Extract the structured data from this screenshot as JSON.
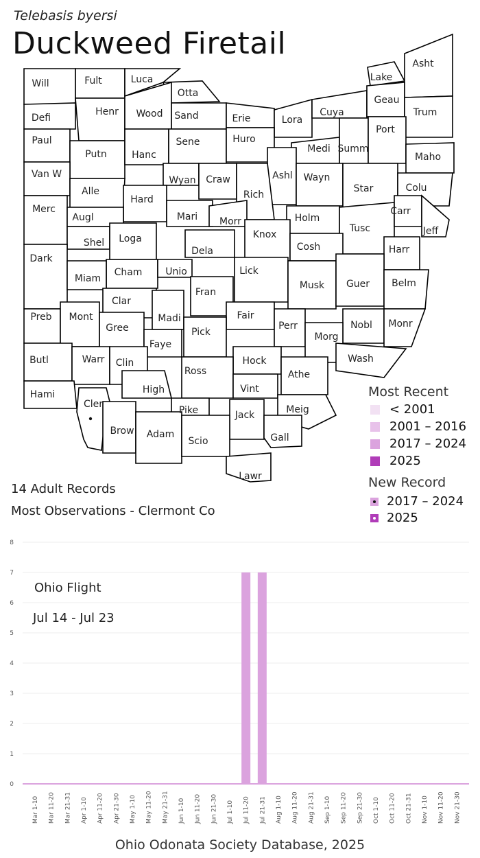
{
  "header": {
    "scientific_name": "Telebasis byersi",
    "common_name": "Duckweed Firetail"
  },
  "map": {
    "counties": [
      "Will",
      "Fult",
      "Luca",
      "Otta",
      "Lake",
      "Asht",
      "Defi",
      "Henr",
      "Wood",
      "Sand",
      "Erie",
      "Lora",
      "Cuya",
      "Geau",
      "Trum",
      "Paul",
      "Putn",
      "Hanc",
      "Sene",
      "Huro",
      "Medi",
      "Summ",
      "Port",
      "Maho",
      "Van W",
      "Alle",
      "Wyan",
      "Craw",
      "Ashl",
      "Wayn",
      "Star",
      "Colu",
      "Hard",
      "Rich",
      "Merc",
      "Augl",
      "Mari",
      "Morr",
      "Holm",
      "Tusc",
      "Carr",
      "Jeff",
      "Shel",
      "Loga",
      "Knox",
      "Cosh",
      "Harr",
      "Dela",
      "Dark",
      "Cham",
      "Unio",
      "Lick",
      "Miam",
      "Musk",
      "Guer",
      "Belm",
      "Fran",
      "Clar",
      "Madi",
      "Fair",
      "Perr",
      "Nobl",
      "Monr",
      "Preb",
      "Mont",
      "Gree",
      "Pick",
      "Morg",
      "Faye",
      "Wash",
      "Butl",
      "Warr",
      "Clin",
      "Hock",
      "Athe",
      "Ross",
      "Vint",
      "Hami",
      "Cler",
      "High",
      "Meig",
      "Pike",
      "Jack",
      "Brow",
      "Adam",
      "Scio",
      "Gall",
      "Lawr"
    ],
    "highlighted_county": "Cler",
    "colors": {
      "before_2001": "#f2e1f3",
      "2001_2016": "#e8c2ea",
      "2017_2024": "#dba3de",
      "2025": "#b03cb8"
    }
  },
  "legend": {
    "recent_title": "Most Recent",
    "recent_items": [
      "< 2001",
      "2001 – 2016",
      "2017 – 2024",
      "2025"
    ],
    "new_title": "New Record",
    "new_items": [
      "2017 – 2024",
      "2025"
    ]
  },
  "summary": {
    "records": "14 Adult Records",
    "most_obs": "Most Observations - Clermont Co"
  },
  "flight": {
    "label": "Ohio Flight",
    "range": "Jul 14 - Jul 23"
  },
  "chart_data": {
    "type": "bar",
    "categories": [
      "Mar 1-10",
      "Mar 11-20",
      "Mar 21-31",
      "Apr 1-10",
      "Apr 11-20",
      "Apr 21-30",
      "May 1-10",
      "May 11-20",
      "May 21-31",
      "Jun 1-10",
      "Jun 11-20",
      "Jun 21-30",
      "Jul 1-10",
      "Jul 11-20",
      "Jul 21-31",
      "Aug 1-10",
      "Aug 11-20",
      "Aug 21-31",
      "Sep 1-10",
      "Sep 11-20",
      "Sep 21-30",
      "Oct 1-10",
      "Oct 11-20",
      "Oct 21-31",
      "Nov 1-10",
      "Nov 11-20",
      "Nov 21-30"
    ],
    "values": [
      0,
      0,
      0,
      0,
      0,
      0,
      0,
      0,
      0,
      0,
      0,
      0,
      0,
      7,
      7,
      0,
      0,
      0,
      0,
      0,
      0,
      0,
      0,
      0,
      0,
      0,
      0
    ],
    "ylim": [
      0,
      8
    ],
    "yticks": [
      0,
      1,
      2,
      3,
      4,
      5,
      6,
      7,
      8
    ],
    "bar_color": "#dba3de",
    "grid": true
  },
  "footer": "Ohio Odonata Society Database, 2025"
}
